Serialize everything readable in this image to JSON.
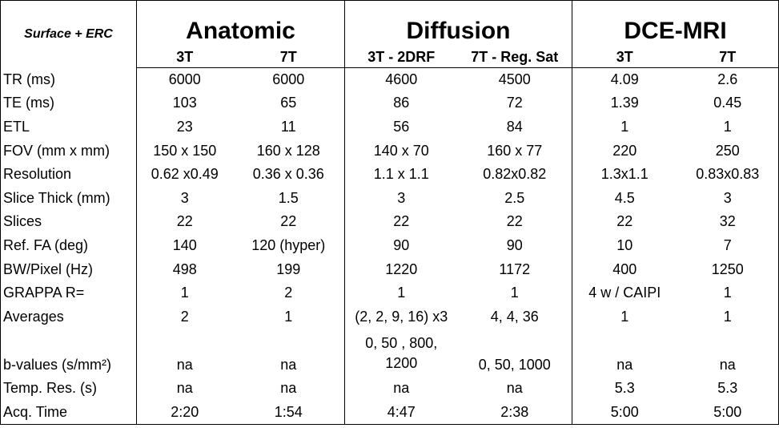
{
  "header": {
    "corner": "Surface + ERC",
    "groups": [
      "Anatomic",
      "Diffusion",
      "DCE-MRI"
    ],
    "columns": [
      "3T",
      "7T",
      "3T - 2DRF",
      "7T - Reg. Sat",
      "3T",
      "7T"
    ]
  },
  "table": {
    "rows": [
      [
        "TR (ms)",
        "6000",
        "6000",
        "4600",
        "4500",
        "4.09",
        "2.6"
      ],
      [
        "TE (ms)",
        "103",
        "65",
        "86",
        "72",
        "1.39",
        "0.45"
      ],
      [
        "ETL",
        "23",
        "11",
        "56",
        "84",
        "1",
        "1"
      ],
      [
        "FOV (mm x mm)",
        "150 x 150",
        "160 x 128",
        "140 x 70",
        "160 x 77",
        "220",
        "250"
      ],
      [
        "Resolution",
        "0.62 x0.49",
        "0.36 x 0.36",
        "1.1 x 1.1",
        "0.82x0.82",
        "1.3x1.1",
        "0.83x0.83"
      ],
      [
        "Slice Thick (mm)",
        "3",
        "1.5",
        "3",
        "2.5",
        "4.5",
        "3"
      ],
      [
        "Slices",
        "22",
        "22",
        "22",
        "22",
        "22",
        "32"
      ],
      [
        "Ref. FA (deg)",
        "140",
        "120 (hyper)",
        "90",
        "90",
        "10",
        "7"
      ],
      [
        "BW/Pixel (Hz)",
        "498",
        "199",
        "1220",
        "1172",
        "400",
        "1250"
      ],
      [
        "GRAPPA R=",
        "1",
        "2",
        "1",
        "1",
        "4 w / CAIPI",
        "1"
      ],
      [
        "Averages",
        "2",
        "1",
        "(2, 2, 9, 16) x3",
        "4, 4, 36",
        "1",
        "1"
      ],
      [
        "b-values (s/mm²)",
        "na",
        "na",
        "0, 50 , 800, 1200",
        "0, 50, 1000",
        "na",
        "na"
      ],
      [
        "Temp. Res. (s)",
        "na",
        "na",
        "na",
        "na",
        "5.3",
        "5.3"
      ],
      [
        "Acq. Time",
        "2:20",
        "1:54",
        "4:47",
        "2:38",
        "5:00",
        "5:00"
      ]
    ]
  }
}
